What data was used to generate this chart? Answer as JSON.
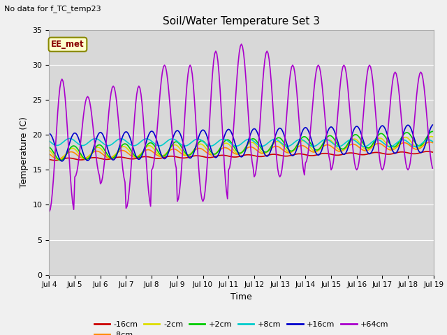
{
  "title": "Soil/Water Temperature Set 3",
  "subtitle": "No data for f_TC_temp23",
  "xlabel": "Time",
  "ylabel": "Temperature (C)",
  "ylim": [
    0,
    35
  ],
  "yticks": [
    0,
    5,
    10,
    15,
    20,
    25,
    30,
    35
  ],
  "fig_bg": "#f0f0f0",
  "plot_bg": "#d8d8d8",
  "grid_color": "#ffffff",
  "legend_label": "EE_met",
  "series_colors": {
    "-16cm": "#cc0000",
    "-8cm": "#ff8800",
    "-2cm": "#dddd00",
    "+2cm": "#00cc00",
    "+8cm": "#00cccc",
    "+16cm": "#0000cc",
    "+64cm": "#aa00cc"
  }
}
